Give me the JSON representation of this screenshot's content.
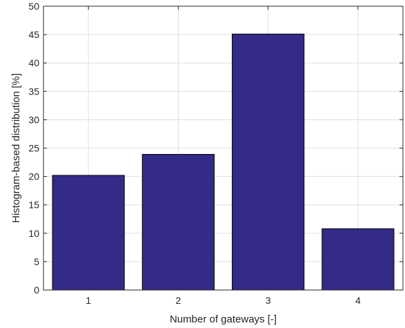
{
  "chart_data": {
    "type": "bar",
    "categories": [
      "1",
      "2",
      "3",
      "4"
    ],
    "values": [
      20.2,
      23.9,
      45.1,
      10.8
    ],
    "xlabel": "Number of gateways [-]",
    "ylabel": "Histogram-based distribution [%]",
    "ylim": [
      0,
      50
    ],
    "yticks": [
      "0",
      "5",
      "10",
      "15",
      "20",
      "25",
      "30",
      "35",
      "40",
      "45",
      "50"
    ],
    "grid": true,
    "bar_color": "#332b87",
    "bar_edge_color": "#000000"
  }
}
